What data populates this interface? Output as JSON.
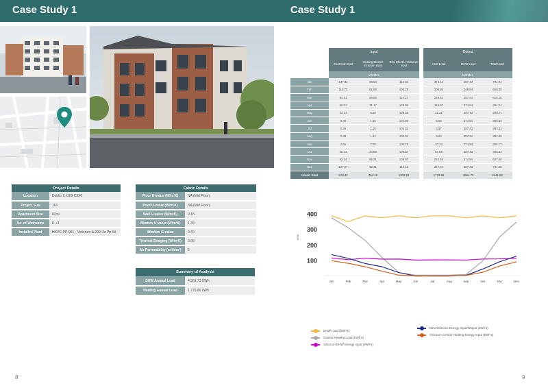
{
  "header": {
    "left_title": "Case Study 1",
    "right_title": "Case Study 1"
  },
  "images": {
    "map_pin": "map-pin-icon"
  },
  "project_details": {
    "title": "Project Details",
    "rows": [
      {
        "k": "Location",
        "v": "Dublin 9, D09 C3X0"
      },
      {
        "k": "Project Size",
        "v": "116"
      },
      {
        "k": "Apartment Size",
        "v": "82m²"
      },
      {
        "k": "No. of Wetrooms",
        "v": "K +3"
      },
      {
        "k": "Installed Plant",
        "v": "HXVC-PP-001 - Victorum & 200l 2z Pp Kit"
      }
    ]
  },
  "fabric_details": {
    "title": "Fabric Details",
    "rows": [
      {
        "k": "Floor U-value (W/m²K)",
        "v": "NA (Mid Floor)"
      },
      {
        "k": "Roof U-value (W/m²K)",
        "v": "NA (Mid Floor)"
      },
      {
        "k": "Wall U-value (W/m²K)",
        "v": "0.18"
      },
      {
        "k": "Window U-value (W/m²K)",
        "v": "1.39"
      },
      {
        "k": "Window G-value",
        "v": "0.49"
      },
      {
        "k": "Thermal Bridging (W/m²K)",
        "v": "0.08"
      },
      {
        "k": "Air Permeability (m³/h/m²)",
        "v": "5"
      }
    ]
  },
  "summary": {
    "title": "Summary of Analysis",
    "rows": [
      {
        "k": "DHW Annual Load",
        "v": "4,561.73 KWh"
      },
      {
        "k": "Heating Annual Load",
        "v": "1,779.86 kWh"
      }
    ]
  },
  "energy_table": {
    "input_label": "Input",
    "output_label": "Output",
    "columns": [
      "Electrical Input",
      "Heating Electric Victorum Input",
      "Dhw Electric Victorum Input",
      "Heat Load",
      "DHW Load",
      "Total Load"
    ],
    "input_unit": "kWh/hrs",
    "output_unit": "kWh/hrs",
    "rows": [
      {
        "m": "Jan",
        "v": [
          "137.82",
          "98.54",
          "116.32",
          "374.41",
          "387.43",
          "761.84"
        ]
      },
      {
        "m": "Feb",
        "v": [
          "113.70",
          "81.88",
          "105.29",
          "309.93",
          "349.94",
          "659.89"
        ]
      },
      {
        "m": "Mar",
        "v": [
          "80.61",
          "59.88",
          "114.37",
          "228.91",
          "387.43",
          "616.35"
        ]
      },
      {
        "m": "Apr",
        "v": [
          "60.01",
          "31.17",
          "108.96",
          "119.20",
          "374.94",
          "494.14"
        ]
      },
      {
        "m": "May",
        "v": "22.17|5.68|109.38|22.31|387.43|409.74"
      },
      {
        "m": "Jun",
        "v": "0.00|1.35|102.80|5.59|374.94|380.52"
      },
      {
        "m": "Jul",
        "v": "0.35|1.46|104.02|5.87|387.43|393.31"
      },
      {
        "m": "Aug",
        "v": "0.38|1.43|104.04|5.83|387.43|393.45"
      },
      {
        "m": "Sep",
        "v": "4.55|3.99|103.15|10.23|374.94|385.17"
      },
      {
        "m": "Oct",
        "v": "45.41|24.69|109.87|97.59|387.43|485.02"
      },
      {
        "m": "Nov",
        "v": "92.24|65.21|109.97|252.56|374.94|627.50"
      },
      {
        "m": "Dec",
        "v": "127.97|90.61|115.11|347.24|387.43|734.68"
      }
    ],
    "total": {
      "m": "Grand Total",
      "v": [
        "678.43",
        "464.15",
        "1302.29",
        "1779.86",
        "4561.73",
        "6341.59"
      ]
    }
  },
  "chart_data": {
    "type": "line",
    "title": "",
    "ylabel": "kWh",
    "xlabel": "",
    "categories": [
      "Jan",
      "Feb",
      "Mar",
      "Apr",
      "May",
      "Jun",
      "Jul",
      "Aug",
      "Sep",
      "Oct",
      "Nov",
      "Dec"
    ],
    "yticks": [
      "400",
      "300",
      "200",
      "100"
    ],
    "ylim": [
      0,
      450
    ],
    "grid": false,
    "legend_position": "bottom",
    "series": [
      {
        "name": "DHW Load (kWh's)",
        "color": "#f0b73a",
        "values": [
          387.43,
          349.94,
          387.43,
          374.94,
          387.43,
          374.94,
          387.43,
          387.43,
          374.94,
          387.43,
          374.94,
          387.43
        ]
      },
      {
        "name": "Central Heating Load (kWh's)",
        "color": "#a8a8a8",
        "values": [
          374.41,
          309.93,
          228.91,
          119.2,
          22.31,
          5.59,
          5.87,
          5.83,
          10.23,
          97.59,
          252.56,
          347.24
        ]
      },
      {
        "name": "Victorum DHW Energy Input (kWh's)",
        "color": "#cc00cc",
        "values": [
          116.32,
          105.29,
          114.37,
          108.96,
          109.38,
          102.8,
          104.02,
          104.04,
          103.15,
          109.87,
          109.97,
          115.11
        ]
      },
      {
        "name": "Direct Electric Energy Input/Output (kWh's)",
        "color": "#1f2f8a",
        "values": [
          137.82,
          113.7,
          80.61,
          60.01,
          22.17,
          0.0,
          0.35,
          0.38,
          4.55,
          45.41,
          92.24,
          127.97
        ]
      },
      {
        "name": "Victorum Central Heating Energy Input (kWh's)",
        "color": "#d2601a",
        "values": [
          98.54,
          81.88,
          59.88,
          31.17,
          5.68,
          1.35,
          1.46,
          1.43,
          3.99,
          24.69,
          65.21,
          90.61
        ]
      }
    ]
  },
  "page_numbers": {
    "left": "8",
    "right": "9"
  }
}
